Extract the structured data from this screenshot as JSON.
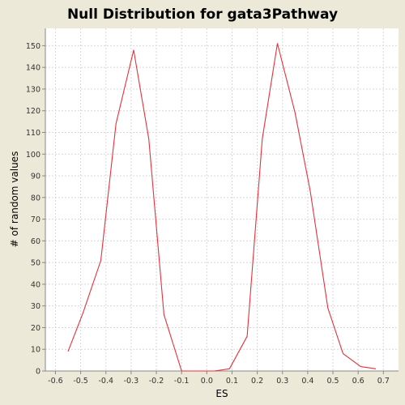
{
  "chart_data": {
    "type": "line",
    "title": "Null Distribution for gata3Pathway",
    "xlabel": "ES",
    "ylabel": "# of random values",
    "xlim": [
      -0.64,
      0.76
    ],
    "ylim": [
      0,
      158
    ],
    "x_ticks": [
      "-0.6",
      "-0.5",
      "-0.4",
      "-0.3",
      "-0.2",
      "-0.1",
      "0.0",
      "0.1",
      "0.2",
      "0.3",
      "0.4",
      "0.5",
      "0.6",
      "0.7"
    ],
    "y_ticks": [
      "0",
      "10",
      "20",
      "30",
      "40",
      "50",
      "60",
      "70",
      "80",
      "90",
      "100",
      "110",
      "120",
      "130",
      "140",
      "150"
    ],
    "grid": true,
    "series": [
      {
        "color": "#e8303a",
        "x": [
          -0.55,
          -0.49,
          -0.42,
          -0.36,
          -0.29,
          -0.23,
          -0.17,
          -0.1,
          -0.04,
          0.03,
          0.09,
          0.16,
          0.22,
          0.28,
          0.35,
          0.41,
          0.48,
          0.54,
          0.61,
          0.67
        ],
        "y": [
          9,
          27,
          51,
          114,
          148,
          107,
          26,
          0,
          0,
          0,
          1,
          16,
          107,
          151,
          119,
          83,
          29,
          8,
          2,
          1
        ]
      }
    ]
  }
}
